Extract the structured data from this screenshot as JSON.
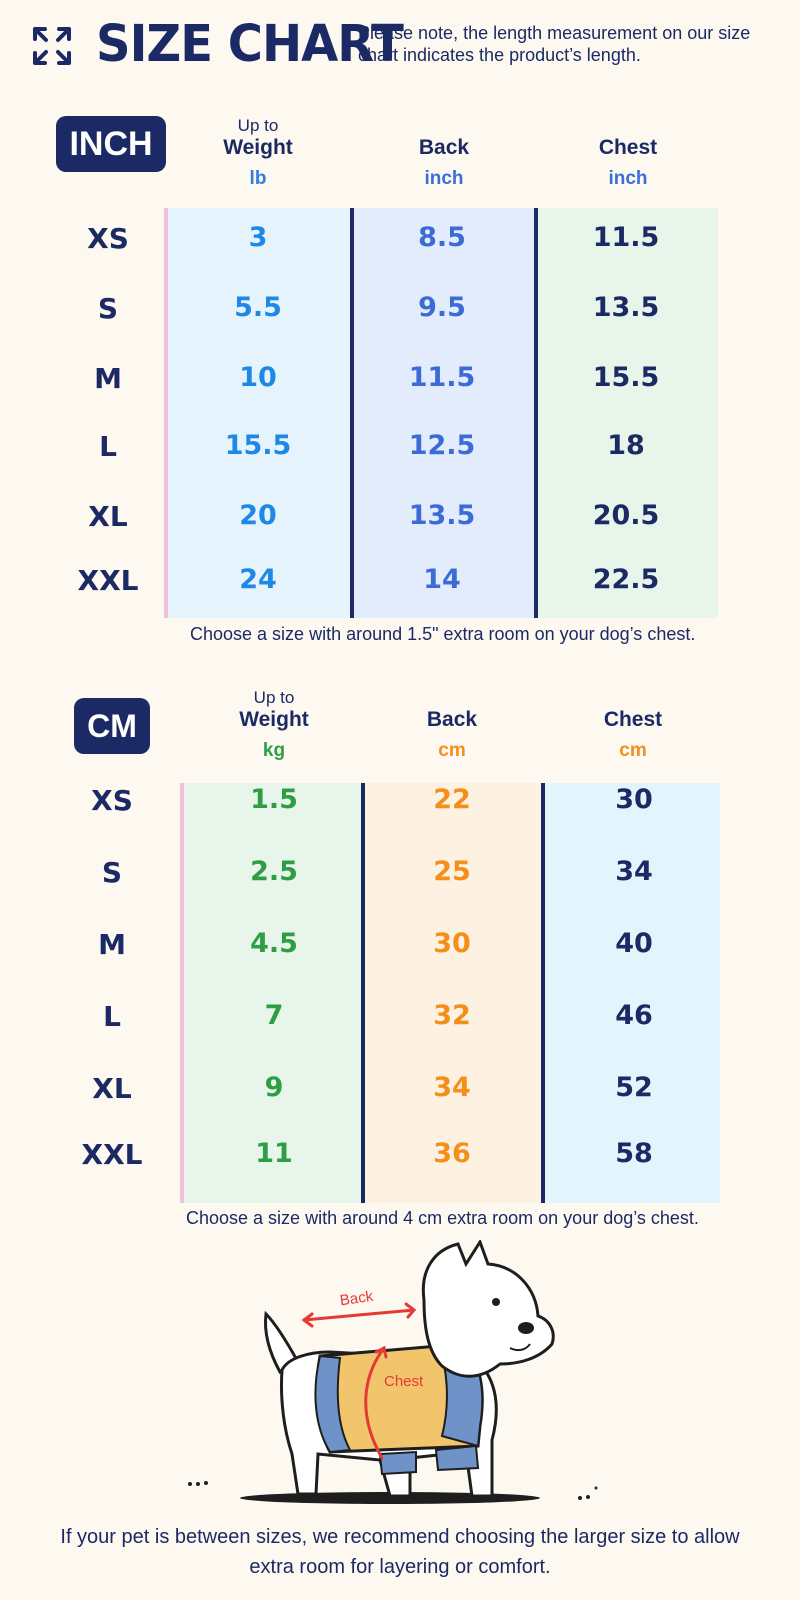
{
  "header": {
    "title": "SIZE CHART",
    "note": "Please note, the length measurement on our size chart indicates the product’s length."
  },
  "inch": {
    "badge": "INCH",
    "columns": [
      {
        "upto": "Up to",
        "label": "Weight",
        "unit": "lb",
        "unit_color": "#2f7de1"
      },
      {
        "upto": "",
        "label": "Back",
        "unit": "inch",
        "unit_color": "#3b6fd8"
      },
      {
        "upto": "",
        "label": "Chest",
        "unit": "inch",
        "unit_color": "#3b6fd8"
      }
    ],
    "rows": [
      {
        "size": "XS",
        "weight": "3",
        "back": "8.5",
        "chest": "11.5"
      },
      {
        "size": "S",
        "weight": "5.5",
        "back": "9.5",
        "chest": "13.5"
      },
      {
        "size": "M",
        "weight": "10",
        "back": "11.5",
        "chest": "15.5"
      },
      {
        "size": "L",
        "weight": "15.5",
        "back": "12.5",
        "chest": "18"
      },
      {
        "size": "XL",
        "weight": "20",
        "back": "13.5",
        "chest": "20.5"
      },
      {
        "size": "XXL",
        "weight": "24",
        "back": "14",
        "chest": "22.5"
      }
    ],
    "hint": "Choose a size with around 1.5\" extra room on your dog’s chest.",
    "colors": {
      "weight": "#1e88e5",
      "back": "#3d6bd6",
      "chest": "#1b2a64",
      "bg_weight": "#e5f3fd",
      "bg_back": "#e3ecfc",
      "bg_chest": "#e7f5eb"
    }
  },
  "cm": {
    "badge": "CM",
    "columns": [
      {
        "upto": "Up to",
        "label": "Weight",
        "unit": "kg",
        "unit_color": "#2e9e44"
      },
      {
        "upto": "",
        "label": "Back",
        "unit": "cm",
        "unit_color": "#f58f1b"
      },
      {
        "upto": "",
        "label": "Chest",
        "unit": "cm",
        "unit_color": "#f58f1b"
      }
    ],
    "rows": [
      {
        "size": "XS",
        "weight": "1.5",
        "back": "22",
        "chest": "30"
      },
      {
        "size": "S",
        "weight": "2.5",
        "back": "25",
        "chest": "34"
      },
      {
        "size": "M",
        "weight": "4.5",
        "back": "30",
        "chest": "40"
      },
      {
        "size": "L",
        "weight": "7",
        "back": "32",
        "chest": "46"
      },
      {
        "size": "XL",
        "weight": "9",
        "back": "34",
        "chest": "52"
      },
      {
        "size": "XXL",
        "weight": "11",
        "back": "36",
        "chest": "58"
      }
    ],
    "hint": "Choose a size with around 4 cm extra room on your dog’s chest.",
    "colors": {
      "weight": "#2e9e44",
      "back": "#f58f1b",
      "chest": "#1b2a64",
      "bg_weight": "#e8f5ea",
      "bg_back": "#fdf1e2",
      "bg_chest": "#e3f4fd"
    }
  },
  "illustration": {
    "back_label": "Back",
    "chest_label": "Chest",
    "icon": "dog-in-sweater-illustration"
  },
  "footer": "If your pet is between sizes, we recommend choosing the larger size to allow extra room for layering or comfort."
}
